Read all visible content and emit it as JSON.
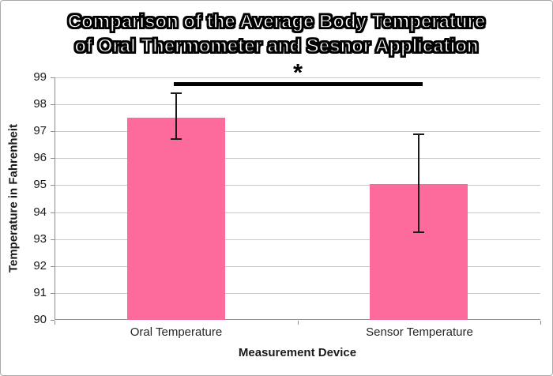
{
  "chart_data": {
    "type": "bar",
    "title": "Comparison of the Average Body Temperature of Oral Thermometer and Sesnor Application",
    "title_line1": "Comparison of the Average Body Temperature",
    "title_line2": "of Oral Thermometer and Sesnor Application",
    "xlabel": "Measurement Device",
    "ylabel": "Temperature in Fahrenheit",
    "categories": [
      "Oral Temperature",
      "Sensor Temperature"
    ],
    "series": [
      {
        "name": "Average Body Temperature",
        "values": [
          97.5,
          95.05
        ]
      }
    ],
    "error_bars": [
      {
        "high": 98.4,
        "low": 96.7
      },
      {
        "high": 96.9,
        "low": 93.25
      }
    ],
    "ylim": [
      90,
      99
    ],
    "yticks": [
      90,
      91,
      92,
      93,
      94,
      95,
      96,
      97,
      98,
      99
    ],
    "grid": true,
    "legend": "none",
    "significance": {
      "symbol": "*",
      "between": [
        "Oral Temperature",
        "Sensor Temperature"
      ],
      "line_y": 98.77
    },
    "colors": {
      "bar": "#FC6B9C",
      "gridline": "#c9c9c9",
      "axis": "#8f8f8f",
      "error_bar": "#1a1a1a",
      "significance_line": "#000000"
    }
  }
}
